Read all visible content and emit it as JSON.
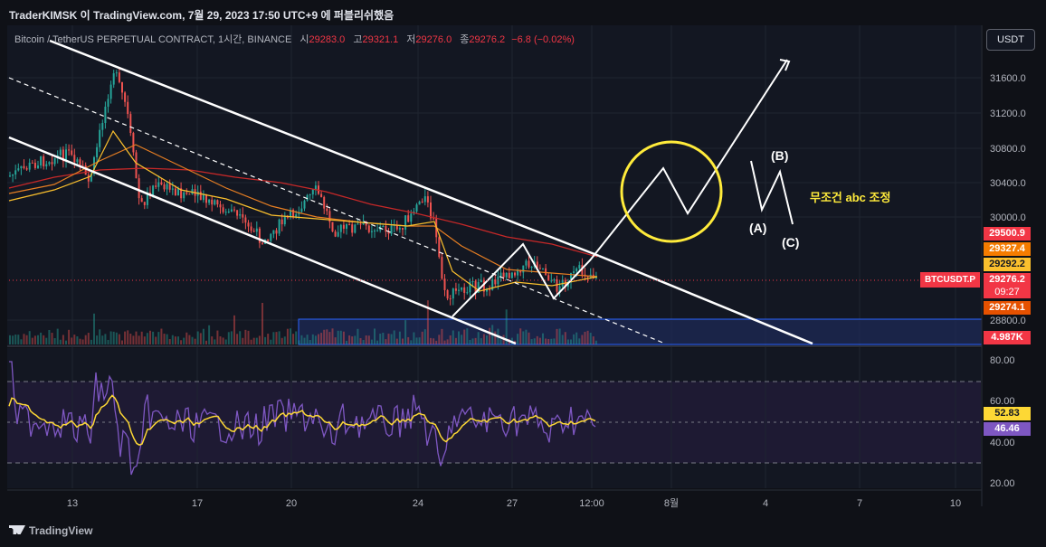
{
  "header": {
    "attribution": "TraderKIMSK 이 TradingView.com, 7월 29, 2023 17:50 UTC+9 에 퍼블리쉬했음"
  },
  "legend": {
    "symbol": "Bitcoin / TetherUS PERPETUAL CONTRACT, 1시간, BINANCE",
    "open_label": "시",
    "open": "29283.0",
    "high_label": "고",
    "high": "29321.1",
    "low_label": "저",
    "low": "29276.0",
    "close_label": "종",
    "close": "29276.2",
    "change": "−6.8 (−0.02%)"
  },
  "currency_button": "USDT",
  "price_axis": [
    "31600.0",
    "31200.0",
    "30800.0",
    "30400.0",
    "30000.0",
    "28800.0"
  ],
  "badges": {
    "p1": "29500.9",
    "p2": "29327.4",
    "p3": "29292.2",
    "current": "29276.2",
    "countdown": "09:27",
    "p5": "29274.1",
    "volume": "4.987K",
    "ticker": "BTCUSDT.P"
  },
  "rsi_axis": [
    "80.00",
    "60.00",
    "40.00",
    "20.00"
  ],
  "rsi_badges": {
    "rsi_ma": "52.83",
    "rsi": "46.46"
  },
  "time_axis": [
    "13",
    "17",
    "20",
    "24",
    "27",
    "12:00",
    "8월",
    "4",
    "7",
    "10"
  ],
  "annotations": {
    "wave_a": "(A)",
    "wave_b": "(B)",
    "wave_c": "(C)",
    "korean_note": "무조건 abc 조정"
  },
  "footer": {
    "brand": "TradingView"
  },
  "colors": {
    "background": "#0f1117",
    "up": "#26a69a",
    "down": "#ef5350",
    "channel": "#ffffff",
    "circle": "#ffeb3b",
    "rsi_line": "#7e57c2",
    "rsi_ma": "#fdd835"
  }
}
